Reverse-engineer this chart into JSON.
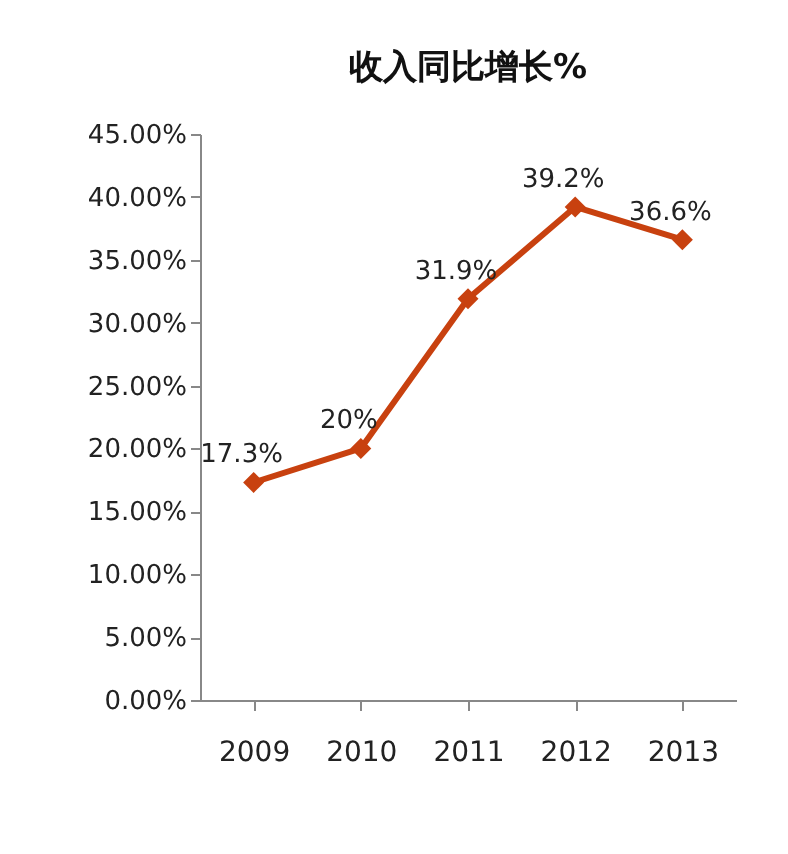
{
  "chart_data": {
    "type": "line",
    "title": "收入同比增长%",
    "categories": [
      "2009",
      "2010",
      "2011",
      "2012",
      "2013"
    ],
    "series": [
      {
        "color": "#c8410f",
        "values": [
          17.3,
          20,
          31.9,
          39.2,
          36.6
        ],
        "value_labels": [
          "17.3%",
          "20%",
          "31.9%",
          "39.2%",
          "36.6%"
        ]
      }
    ],
    "ylim": [
      0,
      45
    ],
    "yticks": [
      {
        "value": 0,
        "label": "0.00%"
      },
      {
        "value": 5,
        "label": "5.00%"
      },
      {
        "value": 10,
        "label": "10.00%"
      },
      {
        "value": 15,
        "label": "15.00%"
      },
      {
        "value": 20,
        "label": "20.00%"
      },
      {
        "value": 25,
        "label": "25.00%"
      },
      {
        "value": 30,
        "label": "30.00%"
      },
      {
        "value": 35,
        "label": "35.00%"
      },
      {
        "value": 40,
        "label": "40.00%"
      },
      {
        "value": 45,
        "label": "45.00%"
      }
    ],
    "marker": "diamond",
    "line_style": "solid",
    "grid": false
  }
}
